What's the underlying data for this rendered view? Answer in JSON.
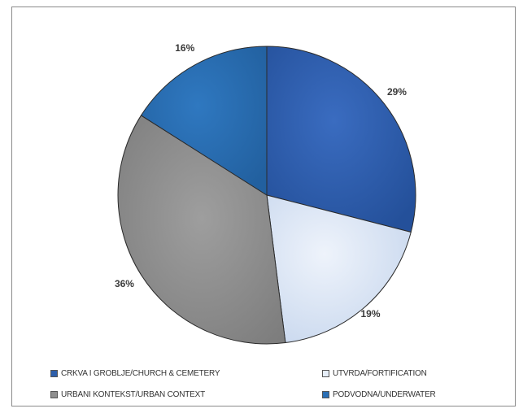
{
  "chart_data": {
    "type": "pie",
    "slices": [
      {
        "label": "CRKVA I GROBLJE/CHURCH & CEMETERY",
        "value": 29,
        "display": "29%",
        "color": "#2e5faa"
      },
      {
        "label": "UTVRDA/FORTIFICATION",
        "value": 19,
        "display": "19%",
        "color": "#d7e3f3"
      },
      {
        "label": "URBANI KONTEKST/URBAN CONTEXT",
        "value": 36,
        "display": "36%",
        "color": "#8f8f8f"
      },
      {
        "label": "PODVODNA/UNDERWATER",
        "value": 16,
        "display": "16%",
        "color": "#2a6fb5"
      }
    ],
    "legend_position": "bottom",
    "start_angle": "top",
    "direction": "clockwise"
  }
}
